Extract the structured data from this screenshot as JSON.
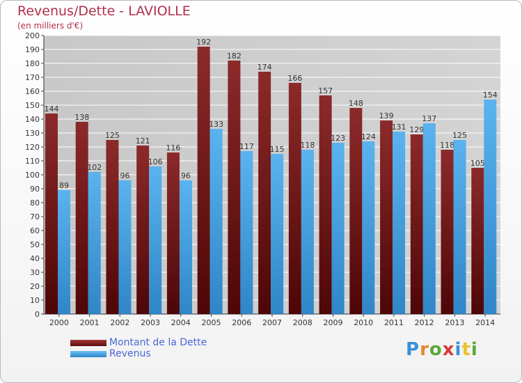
{
  "title": "Revenus/Dette - LAVIOLLE",
  "subtitle": "(en milliers d'€)",
  "legend": {
    "debt_label": "Montant de la Dette",
    "revenue_label": "Revenus"
  },
  "logo": {
    "text": "Proxiti",
    "letters": [
      "P",
      "r",
      "o",
      "x",
      "i",
      "t",
      "i"
    ],
    "colors": [
      "#3a8fd8",
      "#e8872c",
      "#5aa83a",
      "#d83a3a",
      "#3a8fd8",
      "#e8c22c",
      "#5aa83a"
    ]
  },
  "colors": {
    "debt": "#7a1a1a",
    "revenue": "#4aa3e6",
    "title": "#b0304a"
  },
  "chart_data": {
    "type": "bar",
    "categories": [
      "2000",
      "2001",
      "2002",
      "2003",
      "2004",
      "2005",
      "2006",
      "2007",
      "2008",
      "2009",
      "2010",
      "2011",
      "2012",
      "2013",
      "2014"
    ],
    "series": [
      {
        "name": "Montant de la Dette",
        "values": [
          144,
          138,
          125,
          121,
          116,
          192,
          182,
          174,
          166,
          157,
          148,
          139,
          129,
          118,
          105
        ]
      },
      {
        "name": "Revenus",
        "values": [
          89,
          102,
          96,
          106,
          96,
          133,
          117,
          115,
          118,
          123,
          124,
          131,
          137,
          125,
          154
        ]
      }
    ],
    "ylim": [
      0,
      200
    ],
    "ytick_step": 10,
    "grid": true,
    "legend_position": "bottom-left"
  }
}
